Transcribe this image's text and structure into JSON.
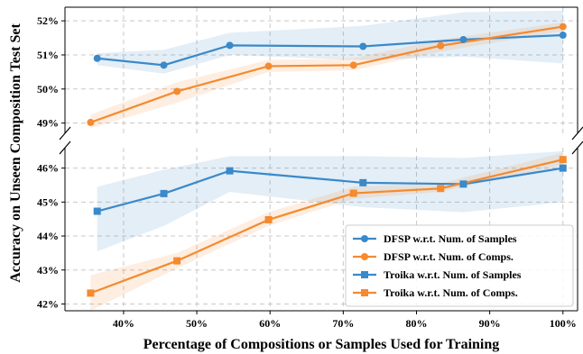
{
  "chart_data": {
    "type": "line",
    "title": "",
    "xlabel": "Percentage of Compositions or Samples Used for Training",
    "ylabel": "Accuracy on Unseen Composition Test Set",
    "xlim": [
      32,
      102
    ],
    "x_ticks": [
      40,
      50,
      60,
      70,
      80,
      90,
      100
    ],
    "x_tick_labels": [
      "40%",
      "50%",
      "60%",
      "70%",
      "80%",
      "90%",
      "100%"
    ],
    "broken_y_axis": true,
    "panels": [
      {
        "name": "top",
        "ylim": [
          48.7,
          52.4
        ],
        "y_ticks": [
          49,
          50,
          51,
          52
        ],
        "y_tick_labels": [
          "49%",
          "50%",
          "51%",
          "52%"
        ],
        "series": [
          "DFSP w.r.t. Num. of Samples",
          "DFSP w.r.t. Num. of Comps."
        ]
      },
      {
        "name": "bottom",
        "ylim": [
          41.8,
          46.6
        ],
        "y_ticks": [
          42,
          43,
          44,
          45,
          46
        ],
        "y_tick_labels": [
          "42%",
          "43%",
          "44%",
          "45%",
          "46%"
        ],
        "series": [
          "Troika w.r.t. Num. of Samples",
          "Troika w.r.t. Num. of Comps."
        ]
      }
    ],
    "grid": true,
    "legend_position": "bottom-right",
    "series": [
      {
        "name": "DFSP w.r.t. Num. of Samples",
        "color": "#3a89c9",
        "marker": "circle",
        "panel": "top",
        "x": [
          36.4,
          45.5,
          54.5,
          72.7,
          86.4,
          100
        ],
        "y": [
          50.9,
          50.7,
          51.28,
          51.25,
          51.45,
          51.58
        ],
        "band_low": [
          50.7,
          50.45,
          51.0,
          50.85,
          50.95,
          50.75
        ],
        "band_high": [
          51.05,
          51.15,
          51.65,
          51.85,
          52.25,
          52.3
        ]
      },
      {
        "name": "DFSP w.r.t. Num. of Comps.",
        "color": "#f58a2e",
        "marker": "circle",
        "panel": "top",
        "x": [
          35.5,
          47.3,
          59.8,
          71.4,
          83.3,
          100
        ],
        "y": [
          49.02,
          49.93,
          50.67,
          50.7,
          51.27,
          51.83
        ],
        "band_low": [
          48.85,
          49.6,
          50.5,
          50.55,
          51.1,
          51.7
        ],
        "band_high": [
          49.25,
          50.2,
          50.85,
          50.9,
          51.45,
          51.95
        ]
      },
      {
        "name": "Troika w.r.t. Num. of Samples",
        "color": "#3a89c9",
        "marker": "square",
        "panel": "bottom",
        "x": [
          36.4,
          45.5,
          54.5,
          72.7,
          86.4,
          100
        ],
        "y": [
          44.73,
          45.25,
          45.92,
          45.57,
          45.53,
          46.0
        ],
        "band_low": [
          43.55,
          44.3,
          45.3,
          44.85,
          44.7,
          45.0
        ],
        "band_high": [
          45.45,
          45.95,
          46.35,
          46.35,
          46.3,
          46.5
        ]
      },
      {
        "name": "Troika w.r.t. Num. of Comps.",
        "color": "#f58a2e",
        "marker": "square",
        "panel": "bottom",
        "x": [
          35.5,
          47.3,
          59.8,
          71.4,
          83.3,
          100
        ],
        "y": [
          42.32,
          43.27,
          44.48,
          45.26,
          45.4,
          46.25
        ],
        "band_low": [
          41.8,
          43.05,
          44.3,
          45.1,
          45.3,
          46.1
        ],
        "band_high": [
          42.85,
          43.5,
          44.7,
          45.45,
          45.55,
          46.45
        ]
      }
    ]
  }
}
